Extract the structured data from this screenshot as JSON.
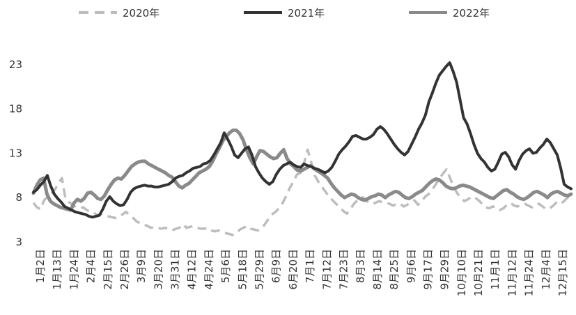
{
  "chart_data": {
    "type": "line",
    "title": "",
    "xlabel": "",
    "ylabel": "",
    "ylim": [
      3,
      24
    ],
    "yticks": [
      3,
      8,
      13,
      18,
      23
    ],
    "x_tick_labels": [
      "1月2日",
      "1月13日",
      "1月24日",
      "2月4日",
      "2月15日",
      "2月26日",
      "3月9日",
      "3月20日",
      "3月31日",
      "4月12日",
      "4月24日",
      "5月6日",
      "5月18日",
      "5月29日",
      "6月9日",
      "6月20日",
      "7月1日",
      "7月12日",
      "7月23日",
      "8月3日",
      "8月14日",
      "8月25日",
      "9月6日",
      "9月17日",
      "9月29日",
      "10月10日",
      "10月21日",
      "11月1日",
      "11月12日",
      "11月24日",
      "12月4日",
      "12月15日"
    ],
    "legend_position": "top",
    "grid": false,
    "series": [
      {
        "name": "2020年",
        "color": "#bdbdbd",
        "style": "dashed",
        "values": [
          7.4,
          6.9,
          6.7,
          7.7,
          8.1,
          8.4,
          8.9,
          9.6,
          10.2,
          7.9,
          7.5,
          7.2,
          6.9,
          6.8,
          6.9,
          6.6,
          6.4,
          6.3,
          6.0,
          6.1,
          6.0,
          5.9,
          5.8,
          5.7,
          5.8,
          6.1,
          6.4,
          6.0,
          5.7,
          5.3,
          5.1,
          5.0,
          4.8,
          4.6,
          4.7,
          4.6,
          4.5,
          4.6,
          4.4,
          4.3,
          4.5,
          4.6,
          5.0,
          4.6,
          4.7,
          4.8,
          4.6,
          4.5,
          4.5,
          4.6,
          4.3,
          4.2,
          4.3,
          4.1,
          4.0,
          3.9,
          3.8,
          4.0,
          4.4,
          4.6,
          4.8,
          4.5,
          4.4,
          4.3,
          4.5,
          5.0,
          5.6,
          6.1,
          6.4,
          6.8,
          7.4,
          8.2,
          9.1,
          9.8,
          10.6,
          10.8,
          11.9,
          13.4,
          12.0,
          10.5,
          9.8,
          9.2,
          8.7,
          8.1,
          7.7,
          7.3,
          6.9,
          6.5,
          6.2,
          6.7,
          7.3,
          7.7,
          8.1,
          7.9,
          7.5,
          7.3,
          7.4,
          7.6,
          7.5,
          7.4,
          7.3,
          7.1,
          7.3,
          7.3,
          7.0,
          7.2,
          7.5,
          7.7,
          7.2,
          7.6,
          8.1,
          8.4,
          8.9,
          9.5,
          10.1,
          10.7,
          11.2,
          10.2,
          9.2,
          8.5,
          8.0,
          7.6,
          7.8,
          8.1,
          8.0,
          7.7,
          7.3,
          6.9,
          6.8,
          7.0,
          6.9,
          6.6,
          6.8,
          7.2,
          7.4,
          7.1,
          7.0,
          7.2,
          7.3,
          7.1,
          6.9,
          7.2,
          7.3,
          7.0,
          6.7,
          6.8,
          7.1,
          7.5,
          7.3,
          7.6,
          8.0,
          8.4
        ]
      },
      {
        "name": "2021年",
        "color": "#333333",
        "style": "solid",
        "values": [
          8.6,
          8.9,
          9.4,
          9.8,
          10.5,
          9.3,
          8.4,
          7.9,
          7.5,
          7.0,
          6.8,
          6.6,
          6.4,
          6.3,
          6.2,
          6.1,
          5.9,
          5.8,
          5.9,
          6.0,
          6.7,
          7.6,
          8.1,
          7.6,
          7.3,
          7.1,
          7.2,
          7.8,
          8.6,
          9.0,
          9.2,
          9.3,
          9.4,
          9.3,
          9.3,
          9.2,
          9.2,
          9.3,
          9.4,
          9.5,
          9.8,
          10.2,
          10.4,
          10.5,
          10.8,
          11.0,
          11.3,
          11.4,
          11.5,
          11.8,
          11.9,
          12.2,
          12.8,
          13.5,
          14.2,
          15.3,
          14.6,
          13.8,
          12.8,
          12.5,
          13.0,
          13.5,
          13.7,
          12.8,
          11.5,
          10.8,
          10.2,
          9.8,
          9.5,
          9.8,
          10.6,
          11.2,
          11.6,
          11.8,
          12.0,
          11.7,
          11.5,
          11.4,
          11.8,
          11.6,
          11.5,
          11.3,
          11.2,
          11.0,
          10.8,
          11.0,
          11.4,
          12.1,
          12.9,
          13.4,
          13.8,
          14.3,
          14.9,
          15.0,
          14.8,
          14.6,
          14.6,
          14.8,
          15.1,
          15.7,
          16.0,
          15.7,
          15.2,
          14.6,
          14.0,
          13.5,
          13.1,
          12.8,
          13.2,
          14.0,
          14.8,
          15.7,
          16.4,
          17.3,
          18.8,
          19.8,
          20.9,
          21.8,
          22.3,
          22.8,
          23.2,
          22.2,
          21.0,
          19.0,
          17.0,
          16.3,
          15.2,
          14.0,
          13.0,
          12.4,
          12.0,
          11.4,
          11.0,
          11.2,
          12.0,
          12.9,
          13.1,
          12.6,
          11.7,
          11.2,
          12.2,
          12.9,
          13.3,
          13.5,
          13.0,
          13.1,
          13.6,
          14.0,
          14.6,
          14.2,
          13.5,
          12.8,
          11.3,
          9.5,
          9.2,
          9.0
        ]
      },
      {
        "name": "2022年",
        "color": "#8a8a8a",
        "style": "solid",
        "values": [
          8.5,
          9.4,
          10.0,
          10.2,
          8.4,
          7.6,
          7.3,
          7.1,
          6.9,
          6.8,
          6.7,
          6.6,
          7.4,
          7.8,
          7.6,
          7.9,
          8.5,
          8.6,
          8.3,
          7.9,
          7.8,
          8.2,
          8.9,
          9.5,
          10.0,
          10.2,
          10.1,
          10.5,
          11.0,
          11.5,
          11.8,
          12.0,
          12.1,
          12.1,
          11.8,
          11.6,
          11.4,
          11.2,
          11.0,
          10.8,
          10.5,
          10.3,
          9.8,
          9.3,
          9.1,
          9.4,
          9.6,
          10.0,
          10.4,
          10.8,
          11.0,
          11.2,
          11.5,
          12.1,
          12.9,
          13.6,
          14.4,
          14.9,
          15.3,
          15.6,
          15.6,
          15.2,
          14.5,
          13.4,
          12.5,
          11.8,
          12.6,
          13.3,
          13.2,
          12.9,
          12.6,
          12.4,
          12.5,
          13.0,
          13.4,
          12.4,
          11.8,
          11.5,
          11.1,
          11.0,
          11.2,
          11.4,
          11.6,
          11.3,
          11.0,
          10.8,
          10.5,
          10.2,
          9.6,
          9.1,
          8.7,
          8.3,
          8.0,
          8.2,
          8.4,
          8.3,
          8.0,
          7.8,
          7.7,
          7.9,
          8.1,
          8.2,
          8.4,
          8.3,
          8.0,
          8.3,
          8.5,
          8.7,
          8.6,
          8.3,
          8.0,
          7.9,
          8.1,
          8.4,
          8.6,
          8.8,
          9.2,
          9.6,
          9.9,
          10.1,
          10.0,
          9.7,
          9.3,
          9.1,
          9.0,
          9.1,
          9.3,
          9.4,
          9.3,
          9.2,
          9.0,
          8.8,
          8.6,
          8.4,
          8.2,
          8.0,
          7.9,
          8.2,
          8.5,
          8.8,
          8.9,
          8.6,
          8.4,
          8.1,
          7.9,
          7.8,
          8.0,
          8.3,
          8.6,
          8.7,
          8.5,
          8.3,
          8.0,
          8.4,
          8.6,
          8.7,
          8.5,
          8.3,
          8.2,
          8.4
        ]
      }
    ]
  }
}
